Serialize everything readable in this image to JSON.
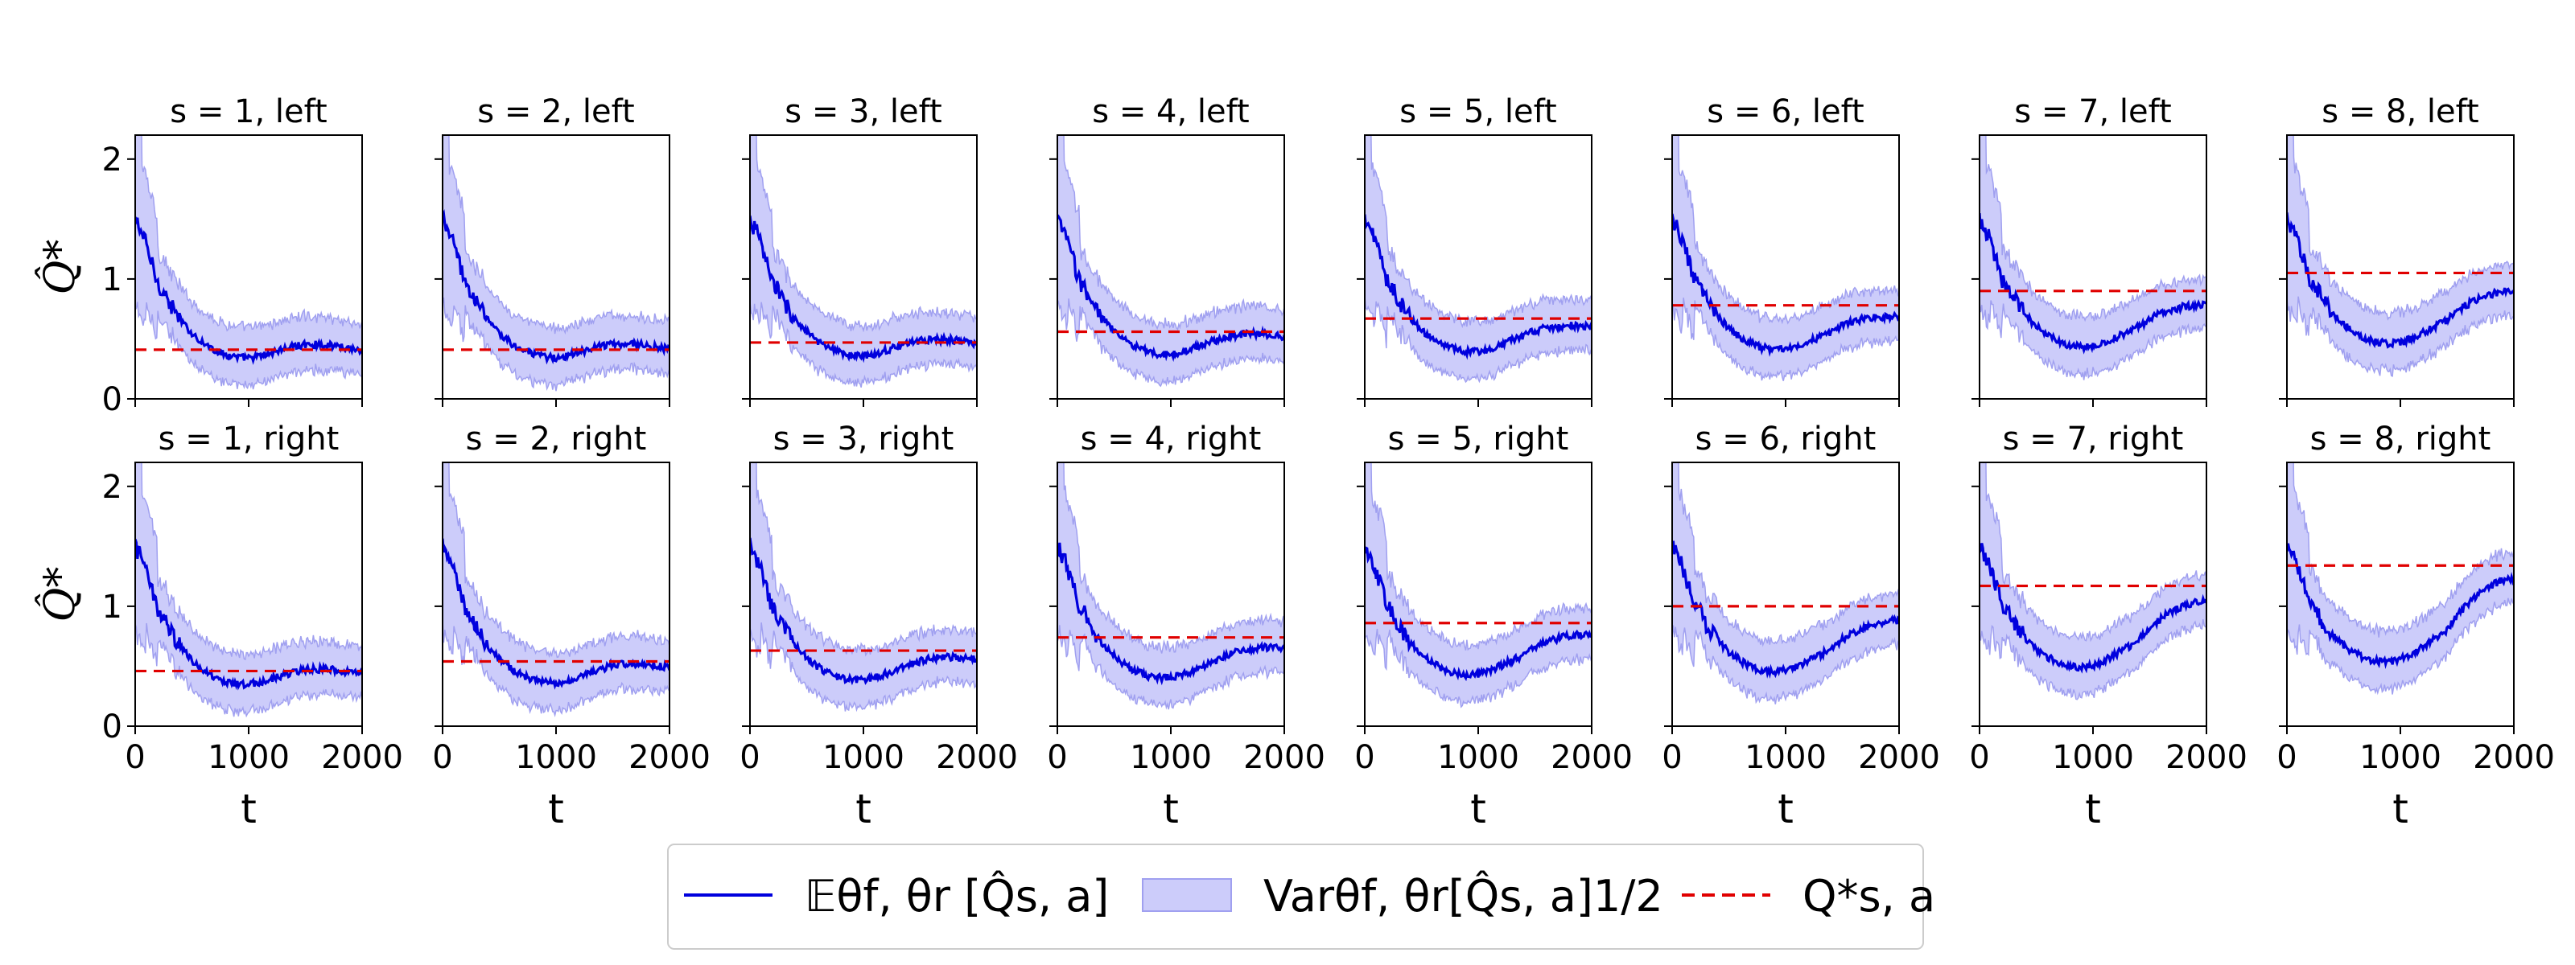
{
  "chart_data": {
    "type": "line",
    "description_rows": [
      "left",
      "right"
    ],
    "x_range": [
      0,
      2000
    ],
    "y_range": [
      0,
      2.2
    ],
    "x_ticks": [
      0,
      1000,
      2000
    ],
    "y_ticks": [
      0,
      1,
      2
    ],
    "xlabel": "t",
    "ylabel": "Q̂*",
    "legend": {
      "placement": "bottom-center",
      "mean_label": "𝔼θf, θr [Q̂s, a]",
      "var_label": "Varθf, θr[Q̂s, a]1/2",
      "target_label": "Q*s, a"
    },
    "colors": {
      "mean": "#0000dd",
      "band": "#ccccfa",
      "band_edge": "#a0a0f0",
      "target": "#e00000"
    },
    "mean_shape": {
      "t": [
        0,
        30,
        60,
        100,
        150,
        200,
        250,
        300,
        400,
        500,
        600,
        700,
        800,
        900,
        1000,
        1100,
        1200,
        1300,
        1400,
        1500,
        1600,
        1700,
        1800,
        1900,
        2000
      ],
      "a": [
        1.5,
        1.45,
        1.4,
        1.3,
        1.15,
        1.0,
        0.95,
        0.85,
        0.72,
        0.62,
        0.55,
        0.5,
        0.47,
        0.46,
        0.47,
        0.5,
        0.55,
        0.6,
        0.65,
        0.7,
        0.74,
        0.78,
        0.82,
        0.86,
        0.9
      ]
    },
    "panels": [
      {
        "title": "s = 1, left",
        "q_star": 0.41,
        "final": 0.4
      },
      {
        "title": "s = 2, left",
        "q_star": 0.41,
        "final": 0.41
      },
      {
        "title": "s = 3, left",
        "q_star": 0.47,
        "final": 0.46
      },
      {
        "title": "s = 4, left",
        "q_star": 0.56,
        "final": 0.52
      },
      {
        "title": "s = 5, left",
        "q_star": 0.67,
        "final": 0.6
      },
      {
        "title": "s = 6, left",
        "q_star": 0.78,
        "final": 0.68
      },
      {
        "title": "s = 7, left",
        "q_star": 0.9,
        "final": 0.78
      },
      {
        "title": "s = 8, left",
        "q_star": 1.05,
        "final": 0.9
      },
      {
        "title": "s = 1, right",
        "q_star": 0.46,
        "final": 0.43
      },
      {
        "title": "s = 2, right",
        "q_star": 0.54,
        "final": 0.49
      },
      {
        "title": "s = 3, right",
        "q_star": 0.63,
        "final": 0.56
      },
      {
        "title": "s = 4, right",
        "q_star": 0.74,
        "final": 0.65
      },
      {
        "title": "s = 5, right",
        "q_star": 0.86,
        "final": 0.76
      },
      {
        "title": "s = 6, right",
        "q_star": 1.0,
        "final": 0.88
      },
      {
        "title": "s = 7, right",
        "q_star": 1.17,
        "final": 1.05
      },
      {
        "title": "s = 8, right",
        "q_star": 1.34,
        "final": 1.24
      }
    ]
  }
}
